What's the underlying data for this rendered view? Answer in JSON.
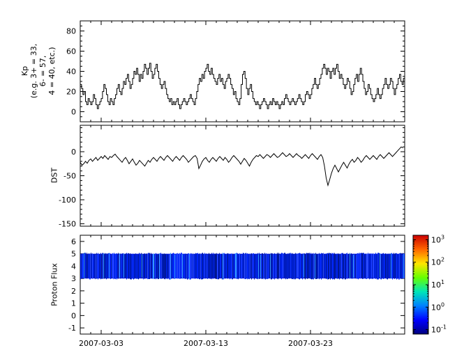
{
  "figure": {
    "background": "#ffffff",
    "axis_color": "#000000",
    "line_color": "#000000"
  },
  "x_axis": {
    "tick_labels": [
      "2007-03-03",
      "2007-03-13",
      "2007-03-23"
    ],
    "tick_days": [
      2,
      12,
      22
    ],
    "minor_tick_every_days": 1,
    "range_days": [
      0,
      31
    ]
  },
  "chart_data": [
    {
      "type": "line",
      "subtype": "step",
      "ylabel_lines": [
        "Kp",
        "(e.g. 3+ = 33,",
        "6- = 57,",
        "4 = 40, etc.)"
      ],
      "ylim": [
        -10,
        90
      ],
      "yticks": [
        0,
        20,
        40,
        60,
        80
      ],
      "ytick_minor_step": 5,
      "samples_per_day": 8,
      "values": [
        27,
        23,
        17,
        20,
        10,
        7,
        13,
        10,
        7,
        10,
        17,
        13,
        7,
        3,
        7,
        10,
        13,
        20,
        27,
        23,
        17,
        10,
        7,
        13,
        10,
        7,
        13,
        17,
        23,
        27,
        20,
        17,
        23,
        30,
        27,
        33,
        37,
        30,
        23,
        27,
        33,
        40,
        37,
        43,
        37,
        30,
        37,
        33,
        40,
        47,
        43,
        37,
        43,
        48,
        40,
        33,
        37,
        43,
        47,
        40,
        33,
        27,
        23,
        27,
        30,
        23,
        17,
        13,
        10,
        13,
        7,
        10,
        7,
        10,
        13,
        7,
        3,
        7,
        10,
        13,
        10,
        7,
        10,
        13,
        17,
        13,
        10,
        7,
        13,
        20,
        27,
        33,
        30,
        37,
        33,
        40,
        43,
        47,
        40,
        37,
        43,
        37,
        33,
        30,
        27,
        33,
        37,
        30,
        33,
        27,
        23,
        30,
        33,
        37,
        33,
        27,
        23,
        17,
        20,
        13,
        10,
        7,
        13,
        27,
        37,
        40,
        33,
        23,
        17,
        23,
        27,
        20,
        13,
        10,
        7,
        10,
        7,
        3,
        7,
        10,
        13,
        10,
        7,
        3,
        7,
        10,
        7,
        13,
        10,
        7,
        10,
        7,
        3,
        7,
        10,
        7,
        13,
        17,
        13,
        10,
        7,
        10,
        13,
        10,
        7,
        10,
        13,
        17,
        13,
        10,
        7,
        10,
        17,
        20,
        17,
        13,
        17,
        23,
        27,
        33,
        27,
        23,
        27,
        33,
        37,
        43,
        47,
        43,
        37,
        43,
        40,
        33,
        40,
        43,
        37,
        43,
        47,
        40,
        33,
        37,
        33,
        27,
        23,
        27,
        33,
        30,
        23,
        17,
        20,
        27,
        33,
        37,
        30,
        37,
        43,
        37,
        30,
        23,
        17,
        20,
        27,
        23,
        17,
        13,
        10,
        13,
        17,
        23,
        17,
        13,
        17,
        23,
        27,
        33,
        27,
        23,
        27,
        33,
        30,
        23,
        17,
        23,
        27,
        33,
        37,
        30,
        27,
        33
      ]
    },
    {
      "type": "line",
      "ylabel": "DST",
      "ylim": [
        -155,
        55
      ],
      "yticks": [
        0,
        -50,
        -100,
        -150
      ],
      "ytick_minor_step": 10,
      "samples_per_day": 6,
      "values": [
        -22,
        -28,
        -25,
        -20,
        -24,
        -18,
        -15,
        -20,
        -16,
        -12,
        -18,
        -14,
        -10,
        -14,
        -8,
        -12,
        -16,
        -10,
        -12,
        -8,
        -5,
        -10,
        -14,
        -18,
        -22,
        -16,
        -12,
        -18,
        -25,
        -20,
        -15,
        -22,
        -28,
        -24,
        -18,
        -22,
        -26,
        -30,
        -24,
        -18,
        -22,
        -16,
        -12,
        -16,
        -20,
        -14,
        -10,
        -14,
        -18,
        -12,
        -8,
        -12,
        -16,
        -20,
        -14,
        -10,
        -14,
        -18,
        -12,
        -8,
        -12,
        -16,
        -22,
        -18,
        -14,
        -10,
        -8,
        -14,
        -35,
        -28,
        -20,
        -15,
        -12,
        -18,
        -22,
        -16,
        -12,
        -16,
        -20,
        -14,
        -10,
        -14,
        -18,
        -12,
        -16,
        -22,
        -18,
        -12,
        -8,
        -12,
        -16,
        -20,
        -26,
        -20,
        -14,
        -18,
        -24,
        -30,
        -22,
        -16,
        -12,
        -8,
        -10,
        -6,
        -10,
        -14,
        -10,
        -6,
        -8,
        -12,
        -8,
        -4,
        -8,
        -12,
        -10,
        -6,
        -2,
        -6,
        -10,
        -8,
        -4,
        -8,
        -12,
        -8,
        -4,
        -8,
        -10,
        -14,
        -10,
        -6,
        -10,
        -14,
        -8,
        -4,
        -8,
        -12,
        -16,
        -10,
        -6,
        -12,
        -30,
        -55,
        -70,
        -58,
        -45,
        -35,
        -28,
        -35,
        -42,
        -35,
        -28,
        -22,
        -28,
        -34,
        -26,
        -20,
        -16,
        -22,
        -18,
        -12,
        -16,
        -22,
        -18,
        -12,
        -8,
        -12,
        -16,
        -12,
        -8,
        -12,
        -16,
        -10,
        -6,
        -10,
        -14,
        -10,
        -6,
        -2,
        -6,
        -10,
        -6,
        -2,
        2,
        6,
        10,
        8
      ]
    },
    {
      "type": "heatmap",
      "ylabel": "Proton Flux",
      "ylim": [
        -1.5,
        6.5
      ],
      "yticks": [
        -1,
        0,
        1,
        2,
        3,
        4,
        5,
        6
      ],
      "ytick_minor_step": null,
      "band": {
        "y_min": 3,
        "y_max": 5,
        "base_color": "#0010d8",
        "value_range_approx": [
          0.1,
          1
        ]
      },
      "colorbar": {
        "scale": "log",
        "tick_exponents": [
          3,
          2,
          1,
          0,
          -1
        ],
        "log_range": [
          -1.2,
          3.2
        ],
        "colors_top_to_bottom": [
          "#cc0000",
          "#ff6600",
          "#ffe600",
          "#66ff00",
          "#00e6b8",
          "#0080ff",
          "#0000ff",
          "#000080"
        ]
      }
    }
  ]
}
